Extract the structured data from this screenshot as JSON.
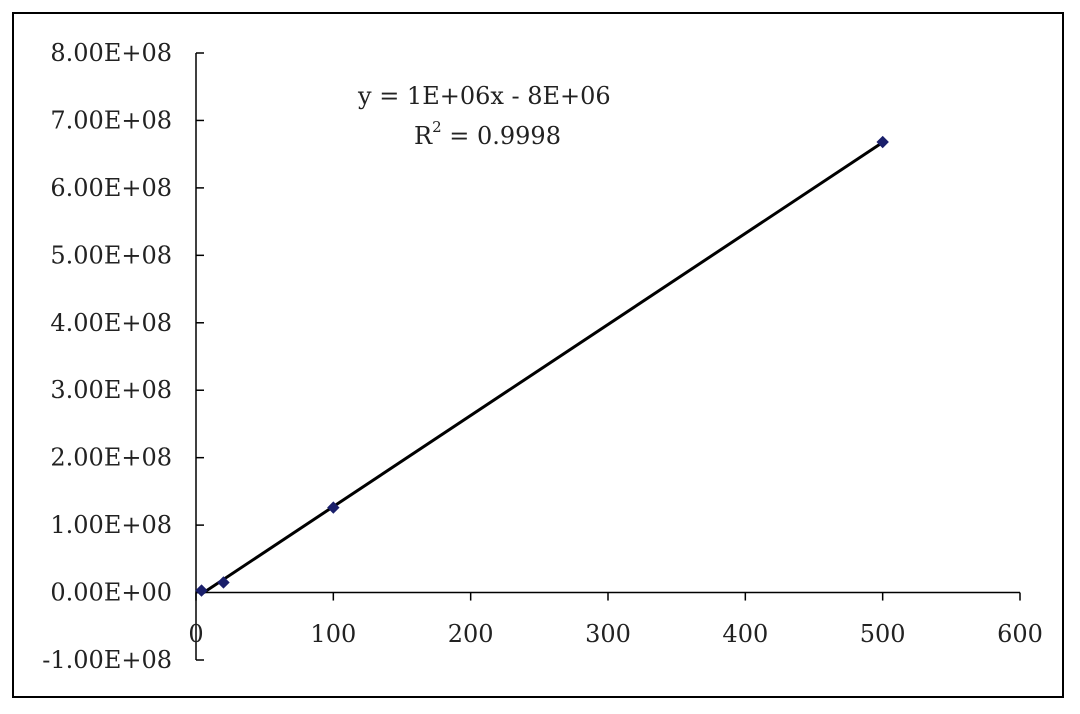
{
  "chart_data": {
    "type": "scatter",
    "title": "",
    "xlabel": "",
    "ylabel": "",
    "xlim": [
      0,
      600
    ],
    "ylim": [
      -100000000,
      800000000
    ],
    "grid": false,
    "legend": "none",
    "x_ticks": [
      0,
      100,
      200,
      300,
      400,
      500,
      600
    ],
    "x_tick_labels": [
      "0",
      "100",
      "200",
      "300",
      "400",
      "500",
      "600"
    ],
    "y_ticks": [
      -100000000,
      0,
      100000000,
      200000000,
      300000000,
      400000000,
      500000000,
      600000000,
      700000000,
      800000000
    ],
    "y_tick_labels": [
      "-1.00E+08",
      "0.00E+00",
      "1.00E+08",
      "2.00E+08",
      "3.00E+08",
      "4.00E+08",
      "5.00E+08",
      "6.00E+08",
      "7.00E+08",
      "8.00E+08"
    ],
    "series": [
      {
        "x": [
          4,
          20,
          100,
          500
        ],
        "y": [
          3000000,
          15000000,
          126000000,
          668000000
        ],
        "marker": "diamond",
        "color": "#1a1f6b"
      }
    ],
    "trendline": {
      "type": "linear",
      "x_range": [
        4,
        500
      ],
      "slope": 1350000,
      "intercept": -7500000,
      "color": "#000000",
      "equation": "y = 1E+06x - 8E+06",
      "r2_label": "R",
      "r2_sup": "2",
      "r2_value": " = 0.9998"
    }
  }
}
